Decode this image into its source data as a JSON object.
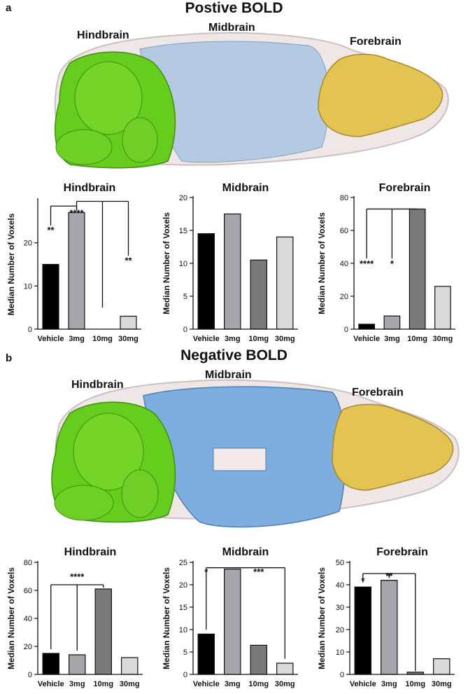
{
  "panels": [
    {
      "letter": "a",
      "title": "Postive BOLD",
      "brain_labels": {
        "hindbrain": "Hindbrain",
        "midbrain": "Midbrain",
        "forebrain": "Forebrain"
      }
    },
    {
      "letter": "b",
      "title": "Negative BOLD",
      "brain_labels": {
        "hindbrain": "Hindbrain",
        "midbrain": "Midbrain",
        "forebrain": "Forebrain"
      }
    }
  ],
  "colors": {
    "hindbrain": "#66cc1e",
    "midbrain_pos": "#9fc0e0",
    "midbrain_neg": "#7eaee0",
    "forebrain": "#e3c352",
    "brain_outline": "#d9cfd0",
    "bar_vehicle": "#000000",
    "bar_3mg": "#a6a6ac",
    "bar_10mg": "#7a7a7a",
    "bar_30mg": "#d9d9d9"
  },
  "chart_data": [
    {
      "type": "bar",
      "title": "Hindbrain",
      "ylabel": "Median Number of Voxels",
      "xlabel": "",
      "categories": [
        "Vehicle",
        "3mg",
        "10mg",
        "30mg"
      ],
      "values": [
        15,
        27,
        0,
        3
      ],
      "ylim": [
        0,
        30
      ],
      "yticks": [
        0,
        10,
        20
      ],
      "annotations": [
        {
          "text": "**",
          "category": "Vehicle",
          "y": 23
        },
        {
          "text": "****",
          "category": "3mg",
          "y": 27
        },
        {
          "text": "**",
          "category": "30mg",
          "y": 16
        }
      ]
    },
    {
      "type": "bar",
      "title": "Midbrain",
      "ylabel": "Median Number of Voxels",
      "xlabel": "",
      "categories": [
        "Vehicle",
        "3mg",
        "10mg",
        "30mg"
      ],
      "values": [
        14.5,
        17.5,
        10.5,
        14
      ],
      "ylim": [
        0,
        20
      ],
      "yticks": [
        0,
        5,
        10,
        15,
        20
      ],
      "annotations": []
    },
    {
      "type": "bar",
      "title": "Forebrain",
      "ylabel": "Median Number of Voxels",
      "xlabel": "",
      "categories": [
        "Vehicle",
        "3mg",
        "10mg",
        "30mg"
      ],
      "values": [
        3,
        8,
        73,
        26
      ],
      "ylim": [
        0,
        80
      ],
      "yticks": [
        0,
        20,
        40,
        60,
        80
      ],
      "annotations": [
        {
          "text": "****",
          "category": "Vehicle",
          "y": 40
        },
        {
          "text": "*",
          "category": "3mg",
          "y": 40
        }
      ]
    },
    {
      "type": "bar",
      "title": "Hindbrain",
      "ylabel": "Median Number of Voxels",
      "xlabel": "",
      "categories": [
        "Vehicle",
        "3mg",
        "10mg",
        "30mg"
      ],
      "values": [
        15,
        14,
        61,
        12
      ],
      "ylim": [
        0,
        80
      ],
      "yticks": [
        0,
        20,
        40,
        60,
        80
      ],
      "annotations": [
        {
          "text": "****",
          "category": "3mg",
          "y": 70
        }
      ]
    },
    {
      "type": "bar",
      "title": "Midbrain",
      "ylabel": "Median Number of Voxels",
      "xlabel": "",
      "categories": [
        "Vehicle",
        "3mg",
        "10mg",
        "30mg"
      ],
      "values": [
        9,
        23.5,
        6.5,
        2.5
      ],
      "ylim": [
        0,
        25
      ],
      "yticks": [
        0,
        5,
        10,
        15,
        20,
        25
      ],
      "annotations": [
        {
          "text": "*",
          "category": "Vehicle",
          "y": 23
        },
        {
          "text": "***",
          "category": "10mg",
          "y": 23
        }
      ]
    },
    {
      "type": "bar",
      "title": "Forebrain",
      "ylabel": "Median Number of Voxels",
      "xlabel": "",
      "categories": [
        "Vehicle",
        "3mg",
        "10mg",
        "30mg"
      ],
      "values": [
        39,
        42,
        1,
        7
      ],
      "ylim": [
        0,
        50
      ],
      "yticks": [
        0,
        10,
        20,
        30,
        40,
        50
      ],
      "annotations": [
        {
          "text": "*",
          "category": "Vehicle",
          "y": 42
        },
        {
          "text": "**",
          "category": "3mg",
          "y": 44
        }
      ]
    }
  ]
}
